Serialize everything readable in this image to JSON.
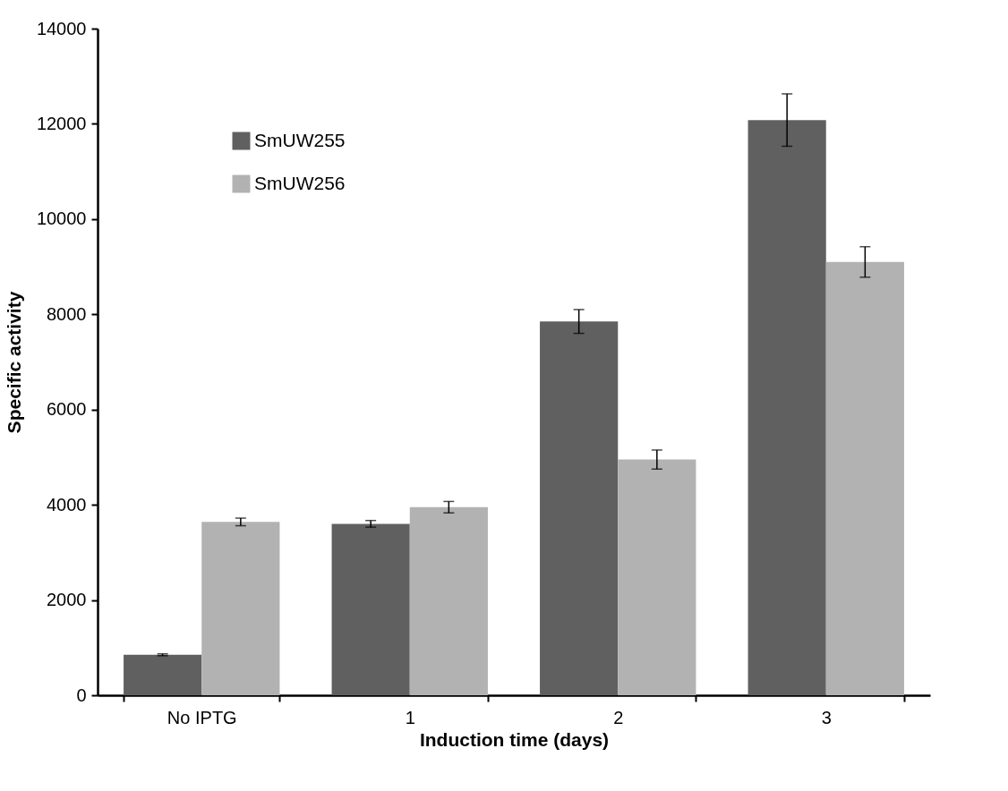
{
  "chart_data": {
    "type": "bar",
    "xlabel": "Induction time (days)",
    "ylabel": "Specific activity",
    "categories": [
      "No IPTG",
      "1",
      "2",
      "3"
    ],
    "series": [
      {
        "name": "SmUW255",
        "color": "#606060",
        "values": [
          850,
          3600,
          7850,
          12080
        ],
        "errors": [
          20,
          70,
          250,
          550
        ]
      },
      {
        "name": "SmUW256",
        "color": "#b2b2b2",
        "values": [
          3640,
          3950,
          4950,
          9100
        ],
        "errors": [
          80,
          120,
          200,
          320
        ]
      }
    ],
    "ylim": [
      0,
      14000
    ],
    "yticks": [
      0,
      2000,
      4000,
      6000,
      8000,
      10000,
      12000,
      14000
    ],
    "grid": false,
    "legend": "top left"
  }
}
